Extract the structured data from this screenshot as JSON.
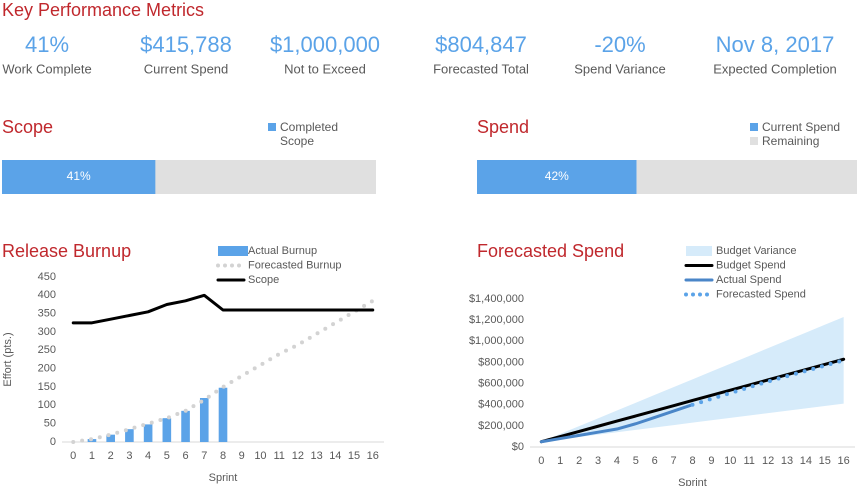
{
  "title": "Key Performance Metrics",
  "kpis": [
    {
      "value": "41%",
      "label": "Work Complete"
    },
    {
      "value": "$415,788",
      "label": "Current Spend"
    },
    {
      "value": "$1,000,000",
      "label": "Not to Exceed"
    },
    {
      "value": "$804,847",
      "label": "Forecasted Total"
    },
    {
      "value": "-20%",
      "label": "Spend Variance"
    },
    {
      "value": "Nov 8, 2017",
      "label": "Expected Completion"
    }
  ],
  "chart_data": [
    {
      "type": "progress",
      "title": "Scope",
      "xlim": [
        0,
        100
      ],
      "track": "#e0e0e0",
      "series": [
        {
          "name": "Completed Scope",
          "color": "#5ba3e8",
          "values": [
            41
          ],
          "value_labels": [
            "41%"
          ]
        }
      ]
    },
    {
      "type": "progress",
      "title": "Spend",
      "xlim": [
        0,
        100
      ],
      "series": [
        {
          "name": "Current Spend",
          "color": "#5ba3e8",
          "values": [
            42
          ],
          "value_labels": [
            "42%"
          ]
        },
        {
          "name": "Remaining",
          "color": "#e0e0e0",
          "values": [
            58
          ]
        }
      ]
    },
    {
      "type": "xy",
      "title": "Release Burnup",
      "xlabel": "Sprint",
      "ylabel": "Effort (pts.)",
      "xlim": [
        -0.6,
        16.6
      ],
      "ylim": [
        0,
        450
      ],
      "x": [
        0,
        1,
        2,
        3,
        4,
        5,
        6,
        7,
        8,
        9,
        10,
        11,
        12,
        13,
        14,
        15,
        16
      ],
      "xticks": [
        0,
        1,
        2,
        3,
        4,
        5,
        6,
        7,
        8,
        9,
        10,
        11,
        12,
        13,
        14,
        15,
        16
      ],
      "yticks": [
        0,
        50,
        100,
        150,
        200,
        250,
        300,
        350,
        400,
        450
      ],
      "series": [
        {
          "name": "Actual Burnup",
          "kind": "bar",
          "color": "#5ba3e8",
          "values": [
            null,
            8,
            20,
            35,
            48,
            65,
            85,
            120,
            148,
            null,
            null,
            null,
            null,
            null,
            null,
            null,
            null
          ]
        },
        {
          "name": "Forecasted Burnup",
          "kind": "line",
          "dash": "dot",
          "color": "#d3d3d3",
          "values": [
            0,
            8,
            20,
            35,
            50,
            65,
            85,
            115,
            150,
            180,
            210,
            240,
            265,
            295,
            325,
            355,
            385
          ]
        },
        {
          "name": "Scope",
          "kind": "line",
          "color": "#000000",
          "values": [
            325,
            325,
            335,
            345,
            355,
            375,
            385,
            400,
            360,
            360,
            360,
            360,
            360,
            360,
            360,
            360,
            360
          ]
        }
      ]
    },
    {
      "type": "xy",
      "title": "Forecasted Spend",
      "xlabel": "Sprint",
      "xlim": [
        -0.6,
        16.6
      ],
      "ylim": [
        0,
        1400000
      ],
      "x": [
        0,
        1,
        2,
        3,
        4,
        5,
        6,
        7,
        8,
        9,
        10,
        11,
        12,
        13,
        14,
        15,
        16
      ],
      "xticks": [
        0,
        1,
        2,
        3,
        4,
        5,
        6,
        7,
        8,
        9,
        10,
        11,
        12,
        13,
        14,
        15,
        16
      ],
      "yticks": [
        {
          "value": 0,
          "label": "$0"
        },
        {
          "value": 200000,
          "label": "$200,000"
        },
        {
          "value": 400000,
          "label": "$400,000"
        },
        {
          "value": 600000,
          "label": "$600,000"
        },
        {
          "value": 800000,
          "label": "$800,000"
        },
        {
          "value": 1000000,
          "label": "$1,000,000"
        },
        {
          "value": 1200000,
          "label": "$1,200,000"
        },
        {
          "value": 1400000,
          "label": "$1,400,000"
        }
      ],
      "series": [
        {
          "name": "Budget Variance",
          "kind": "band",
          "color": "#d6ebfa",
          "upper": [
            50000,
            123750,
            197500,
            271250,
            345000,
            418750,
            492500,
            566250,
            640000,
            713750,
            787500,
            861250,
            935000,
            1008750,
            1082500,
            1156250,
            1230000
          ],
          "lower": [
            50000,
            72500,
            95000,
            117500,
            140000,
            162500,
            185000,
            207500,
            230000,
            252500,
            275000,
            297500,
            320000,
            342500,
            365000,
            387500,
            410000
          ]
        },
        {
          "name": "Budget Spend",
          "kind": "line",
          "color": "#000000",
          "values": [
            50000,
            98750,
            147500,
            196250,
            245000,
            293750,
            342500,
            391250,
            440000,
            488750,
            537500,
            586250,
            635000,
            683750,
            732500,
            781250,
            830000
          ]
        },
        {
          "name": "Actual Spend",
          "kind": "line",
          "color": "#4a86c8",
          "values": [
            50000,
            80000,
            110000,
            140000,
            170000,
            220000,
            280000,
            340000,
            400000,
            null,
            null,
            null,
            null,
            null,
            null,
            null,
            null
          ]
        },
        {
          "name": "Forecasted Spend",
          "kind": "line",
          "dash": "dot",
          "color": "#5ba3e8",
          "values": [
            null,
            null,
            null,
            null,
            null,
            null,
            null,
            null,
            400000,
            455000,
            510000,
            565000,
            620000,
            670000,
            720000,
            770000,
            820000
          ]
        }
      ]
    }
  ]
}
